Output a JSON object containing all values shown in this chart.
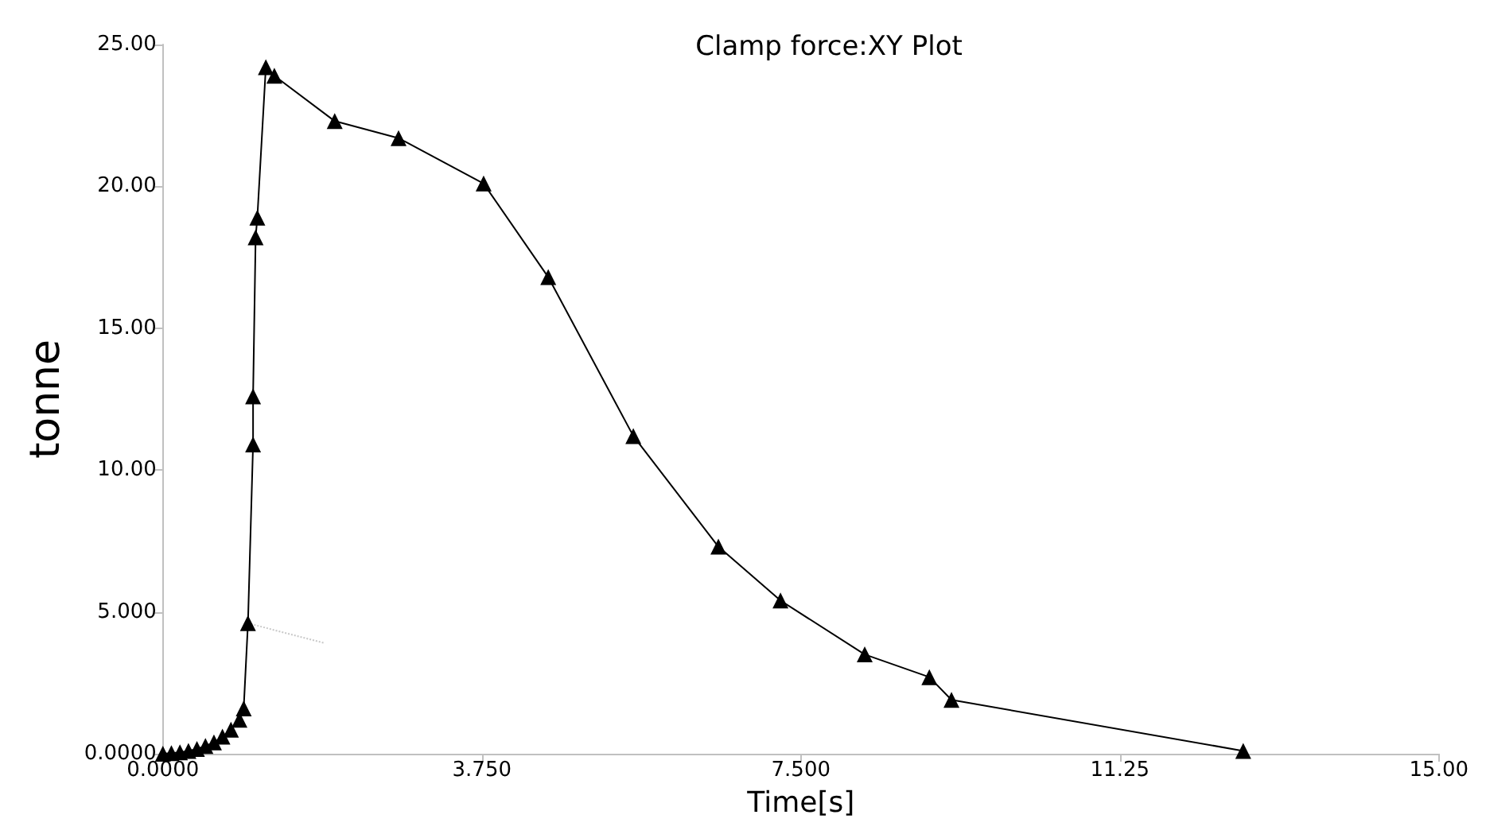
{
  "chart_data": {
    "type": "line",
    "title": "Clamp force:XY Plot",
    "xlabel": "Time[s]",
    "ylabel": "tonne",
    "marker": "triangle",
    "grid": false,
    "xlim": [
      0,
      15
    ],
    "xticks": [
      {
        "value": 0,
        "label": "0.0000"
      },
      {
        "value": 3.75,
        "label": "3.750"
      },
      {
        "value": 7.5,
        "label": "7.500"
      },
      {
        "value": 11.25,
        "label": "11.25"
      },
      {
        "value": 15,
        "label": "15.00"
      }
    ],
    "ylim": [
      0,
      25
    ],
    "yticks": [
      {
        "value": 0,
        "label": "0.0000"
      },
      {
        "value": 5,
        "label": "5.000"
      },
      {
        "value": 10,
        "label": "10.00"
      },
      {
        "value": 15,
        "label": "15.00"
      },
      {
        "value": 20,
        "label": "20.00"
      },
      {
        "value": 25,
        "label": "25.00"
      }
    ],
    "series": [
      {
        "color": "#000000",
        "x": [
          0,
          0.1,
          0.2,
          0.3,
          0.4,
          0.5,
          0.6,
          0.7,
          0.8,
          0.9,
          0.95,
          1.0,
          1.06,
          1.06,
          1.09,
          1.11,
          1.21,
          1.31,
          2.02,
          2.77,
          3.77,
          4.53,
          5.53,
          6.53,
          7.26,
          8.25,
          9.01,
          9.27,
          12.7
        ],
        "values": [
          0,
          0.02,
          0.05,
          0.1,
          0.17,
          0.27,
          0.4,
          0.6,
          0.85,
          1.2,
          1.6,
          4.6,
          10.9,
          12.6,
          18.2,
          18.9,
          24.2,
          23.9,
          22.3,
          21.7,
          20.1,
          16.8,
          11.2,
          7.3,
          5.4,
          3.5,
          2.7,
          1.9,
          0.1
        ]
      },
      {
        "color": "#c8c8c8",
        "marker": "none",
        "line_style": "dotted",
        "x": [
          1.0,
          1.9
        ],
        "values": [
          4.6,
          3.9
        ]
      }
    ]
  }
}
